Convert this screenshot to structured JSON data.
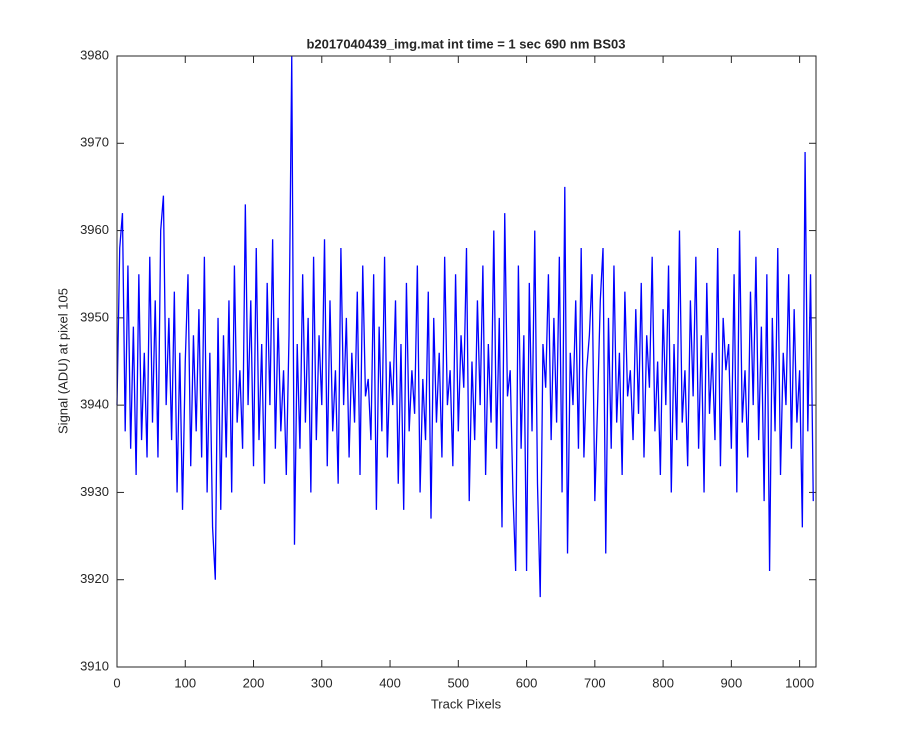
{
  "chart_data": {
    "type": "line",
    "title": "b2017040439_img.mat int time = 1 sec  690 nm BS03",
    "xlabel": "Track Pixels",
    "ylabel": "Signal (ADU) at pixel 105",
    "xlim": [
      0,
      1024
    ],
    "ylim": [
      3910,
      3980
    ],
    "xticks": [
      0,
      100,
      200,
      300,
      400,
      500,
      600,
      700,
      800,
      900,
      1000
    ],
    "yticks": [
      3910,
      3920,
      3930,
      3940,
      3950,
      3960,
      3970,
      3980
    ],
    "series": [
      {
        "color": "#0000ff",
        "x": [
          0,
          4,
          8,
          12,
          16,
          20,
          24,
          28,
          32,
          36,
          40,
          44,
          48,
          52,
          56,
          60,
          64,
          68,
          72,
          76,
          80,
          84,
          88,
          92,
          96,
          100,
          104,
          108,
          112,
          116,
          120,
          124,
          128,
          132,
          136,
          140,
          144,
          148,
          152,
          156,
          160,
          164,
          168,
          172,
          176,
          180,
          184,
          188,
          192,
          196,
          200,
          204,
          208,
          212,
          216,
          220,
          224,
          228,
          232,
          236,
          240,
          244,
          248,
          252,
          256,
          260,
          264,
          268,
          272,
          276,
          280,
          284,
          288,
          292,
          296,
          300,
          304,
          308,
          312,
          316,
          320,
          324,
          328,
          332,
          336,
          340,
          344,
          348,
          352,
          356,
          360,
          364,
          368,
          372,
          376,
          380,
          384,
          388,
          392,
          396,
          400,
          404,
          408,
          412,
          416,
          420,
          424,
          428,
          432,
          436,
          440,
          444,
          448,
          452,
          456,
          460,
          464,
          468,
          472,
          476,
          480,
          484,
          488,
          492,
          496,
          500,
          504,
          508,
          512,
          516,
          520,
          524,
          528,
          532,
          536,
          540,
          544,
          548,
          552,
          556,
          560,
          564,
          568,
          572,
          576,
          580,
          584,
          588,
          592,
          596,
          600,
          604,
          608,
          612,
          616,
          620,
          624,
          628,
          632,
          636,
          640,
          644,
          648,
          652,
          656,
          660,
          664,
          668,
          672,
          676,
          680,
          684,
          688,
          692,
          696,
          700,
          704,
          708,
          712,
          716,
          720,
          724,
          728,
          732,
          736,
          740,
          744,
          748,
          752,
          756,
          760,
          764,
          768,
          772,
          776,
          780,
          784,
          788,
          792,
          796,
          800,
          804,
          808,
          812,
          816,
          820,
          824,
          828,
          832,
          836,
          840,
          844,
          848,
          852,
          856,
          860,
          864,
          868,
          872,
          876,
          880,
          884,
          888,
          892,
          896,
          900,
          904,
          908,
          912,
          916,
          920,
          924,
          928,
          932,
          936,
          940,
          944,
          948,
          952,
          956,
          960,
          964,
          968,
          972,
          976,
          980,
          984,
          988,
          992,
          996,
          1000,
          1004,
          1008,
          1012,
          1016,
          1020
        ],
        "values": [
          3940,
          3958,
          3962,
          3937,
          3956,
          3935,
          3949,
          3932,
          3955,
          3936,
          3946,
          3934,
          3957,
          3938,
          3952,
          3934,
          3960,
          3964,
          3940,
          3950,
          3936,
          3953,
          3930,
          3946,
          3928,
          3945,
          3955,
          3933,
          3948,
          3937,
          3951,
          3934,
          3957,
          3930,
          3946,
          3926,
          3920,
          3950,
          3928,
          3948,
          3934,
          3952,
          3930,
          3956,
          3938,
          3944,
          3935,
          3963,
          3940,
          3952,
          3933,
          3958,
          3936,
          3947,
          3931,
          3954,
          3940,
          3959,
          3935,
          3950,
          3937,
          3944,
          3932,
          3948,
          3980,
          3924,
          3947,
          3935,
          3955,
          3938,
          3950,
          3930,
          3957,
          3936,
          3948,
          3940,
          3959,
          3933,
          3952,
          3937,
          3944,
          3931,
          3958,
          3940,
          3950,
          3934,
          3946,
          3938,
          3953,
          3932,
          3956,
          3941,
          3943,
          3936,
          3955,
          3928,
          3949,
          3937,
          3957,
          3934,
          3945,
          3940,
          3952,
          3931,
          3947,
          3928,
          3954,
          3937,
          3944,
          3939,
          3956,
          3930,
          3943,
          3936,
          3953,
          3927,
          3950,
          3938,
          3946,
          3934,
          3957,
          3940,
          3944,
          3933,
          3955,
          3937,
          3948,
          3942,
          3958,
          3929,
          3945,
          3936,
          3952,
          3940,
          3956,
          3932,
          3947,
          3938,
          3960,
          3935,
          3950,
          3926,
          3962,
          3941,
          3944,
          3930,
          3921,
          3956,
          3935,
          3948,
          3921,
          3954,
          3937,
          3960,
          3931,
          3918,
          3947,
          3942,
          3955,
          3936,
          3950,
          3938,
          3957,
          3930,
          3965,
          3923,
          3946,
          3940,
          3952,
          3935,
          3958,
          3934,
          3944,
          3948,
          3955,
          3929,
          3940,
          3952,
          3958,
          3923,
          3950,
          3935,
          3956,
          3938,
          3946,
          3932,
          3953,
          3941,
          3944,
          3936,
          3951,
          3939,
          3954,
          3934,
          3948,
          3942,
          3957,
          3937,
          3945,
          3932,
          3951,
          3940,
          3956,
          3930,
          3947,
          3936,
          3960,
          3938,
          3944,
          3933,
          3952,
          3941,
          3957,
          3935,
          3948,
          3930,
          3954,
          3939,
          3946,
          3936,
          3958,
          3933,
          3950,
          3944,
          3947,
          3935,
          3955,
          3930,
          3960,
          3938,
          3944,
          3934,
          3953,
          3940,
          3957,
          3936,
          3949,
          3929,
          3955,
          3921,
          3950,
          3937,
          3958,
          3932,
          3946,
          3940,
          3955,
          3935,
          3951,
          3938,
          3944,
          3926,
          3969,
          3937,
          3955,
          3929
        ]
      }
    ]
  }
}
